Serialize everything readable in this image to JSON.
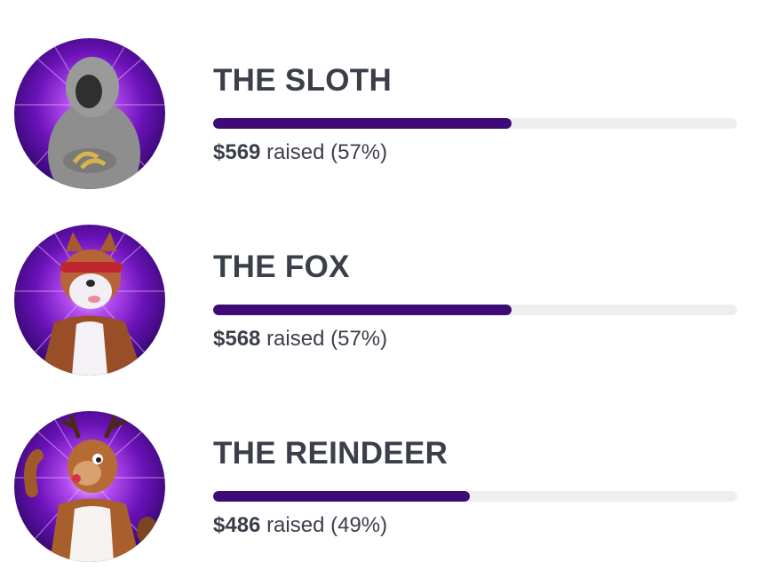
{
  "colors": {
    "bar_fill": "#3e0a75",
    "bar_track": "#eeeeee",
    "text": "#3b3f4a",
    "avatar_glow": "#8a2be2"
  },
  "entries": [
    {
      "name": "THE SLOTH",
      "amount": "$569",
      "raised_text": "raised (57%)",
      "progress": 0.57,
      "avatar_icon": "sloth-costume-avatar"
    },
    {
      "name": "THE FOX",
      "amount": "$568",
      "raised_text": "raised (57%)",
      "progress": 0.57,
      "avatar_icon": "fox-costume-avatar"
    },
    {
      "name": "THE REINDEER",
      "amount": "$486",
      "raised_text": "raised (49%)",
      "progress": 0.49,
      "avatar_icon": "reindeer-costume-avatar"
    }
  ]
}
